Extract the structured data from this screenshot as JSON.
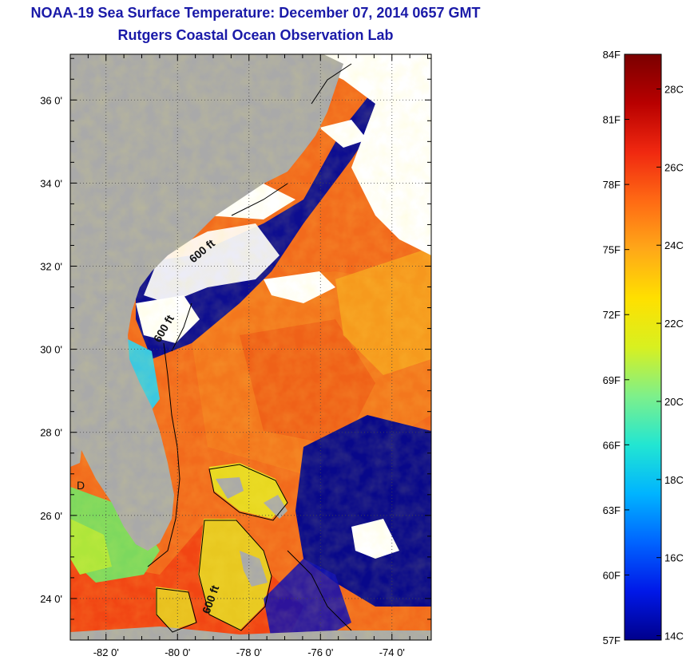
{
  "title": {
    "line1": "NOAA-19 Sea Surface Temperature:  December 07, 2014 0657 GMT",
    "line2": "Rutgers Coastal Ocean Observation Lab"
  },
  "map": {
    "lon_range": [
      -83.0,
      -72.9
    ],
    "lat_range": [
      23.0,
      37.1
    ],
    "lon_ticks": [
      -82,
      -80,
      -78,
      -76,
      -74
    ],
    "lat_ticks": [
      36,
      34,
      32,
      30,
      28,
      26,
      24
    ],
    "lon_tick_labels": [
      "-82 0'",
      "-80 0'",
      "-78 0'",
      "-76 0'",
      "-74 0'"
    ],
    "lat_tick_labels": [
      "36 0'",
      "34 0'",
      "32 0'",
      "30 0'",
      "28 0'",
      "26 0'",
      "24 0'"
    ],
    "grid": "dotted",
    "colors": {
      "land": "#a9a9a9",
      "cloud": "#ffffff",
      "cold": "#0a0a8c",
      "warm": "#f06018"
    },
    "contour_labels": [
      "600 ft",
      "600 ft",
      "600 ft"
    ],
    "inset_letter": "D"
  },
  "colorbar": {
    "range_F": [
      57,
      84
    ],
    "range_C": [
      14,
      29
    ],
    "f_labels": [
      "84F",
      "81F",
      "78F",
      "75F",
      "72F",
      "69F",
      "66F",
      "63F",
      "60F",
      "57F"
    ],
    "c_labels": [
      "28C",
      "26C",
      "24C",
      "22C",
      "20C",
      "18C",
      "16C",
      "14C"
    ],
    "c_values": [
      28,
      26,
      24,
      22,
      20,
      18,
      16,
      14
    ],
    "colors": [
      "#00008c",
      "#0018e8",
      "#0064ff",
      "#00b4ff",
      "#22e6d2",
      "#7ef08a",
      "#d8f020",
      "#ffe000",
      "#ffa818",
      "#ff6a14",
      "#f02810",
      "#b80000",
      "#7a0000"
    ]
  }
}
